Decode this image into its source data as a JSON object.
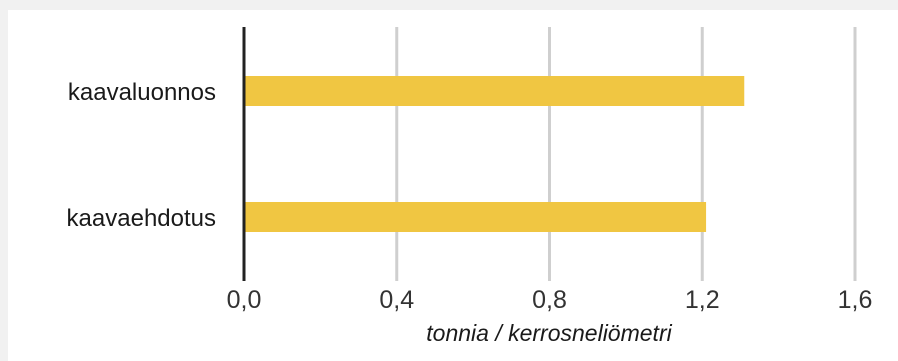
{
  "chart_data": {
    "type": "bar",
    "orientation": "horizontal",
    "categories": [
      "kaavaluonnos",
      "kaavaehdotus"
    ],
    "values": [
      1.31,
      1.21
    ],
    "xlabel": "tonnia / kerrosneliömetri",
    "xlim": [
      0,
      1.6
    ],
    "ticks": [
      "0,0",
      "0,4",
      "0,8",
      "1,2",
      "1,6"
    ],
    "tick_values": [
      0,
      0.4,
      0.8,
      1.2,
      1.6
    ],
    "grid": true,
    "colors": {
      "bar": "#f0c642",
      "grid": "#cfcfcf",
      "axis": "#222222"
    }
  }
}
